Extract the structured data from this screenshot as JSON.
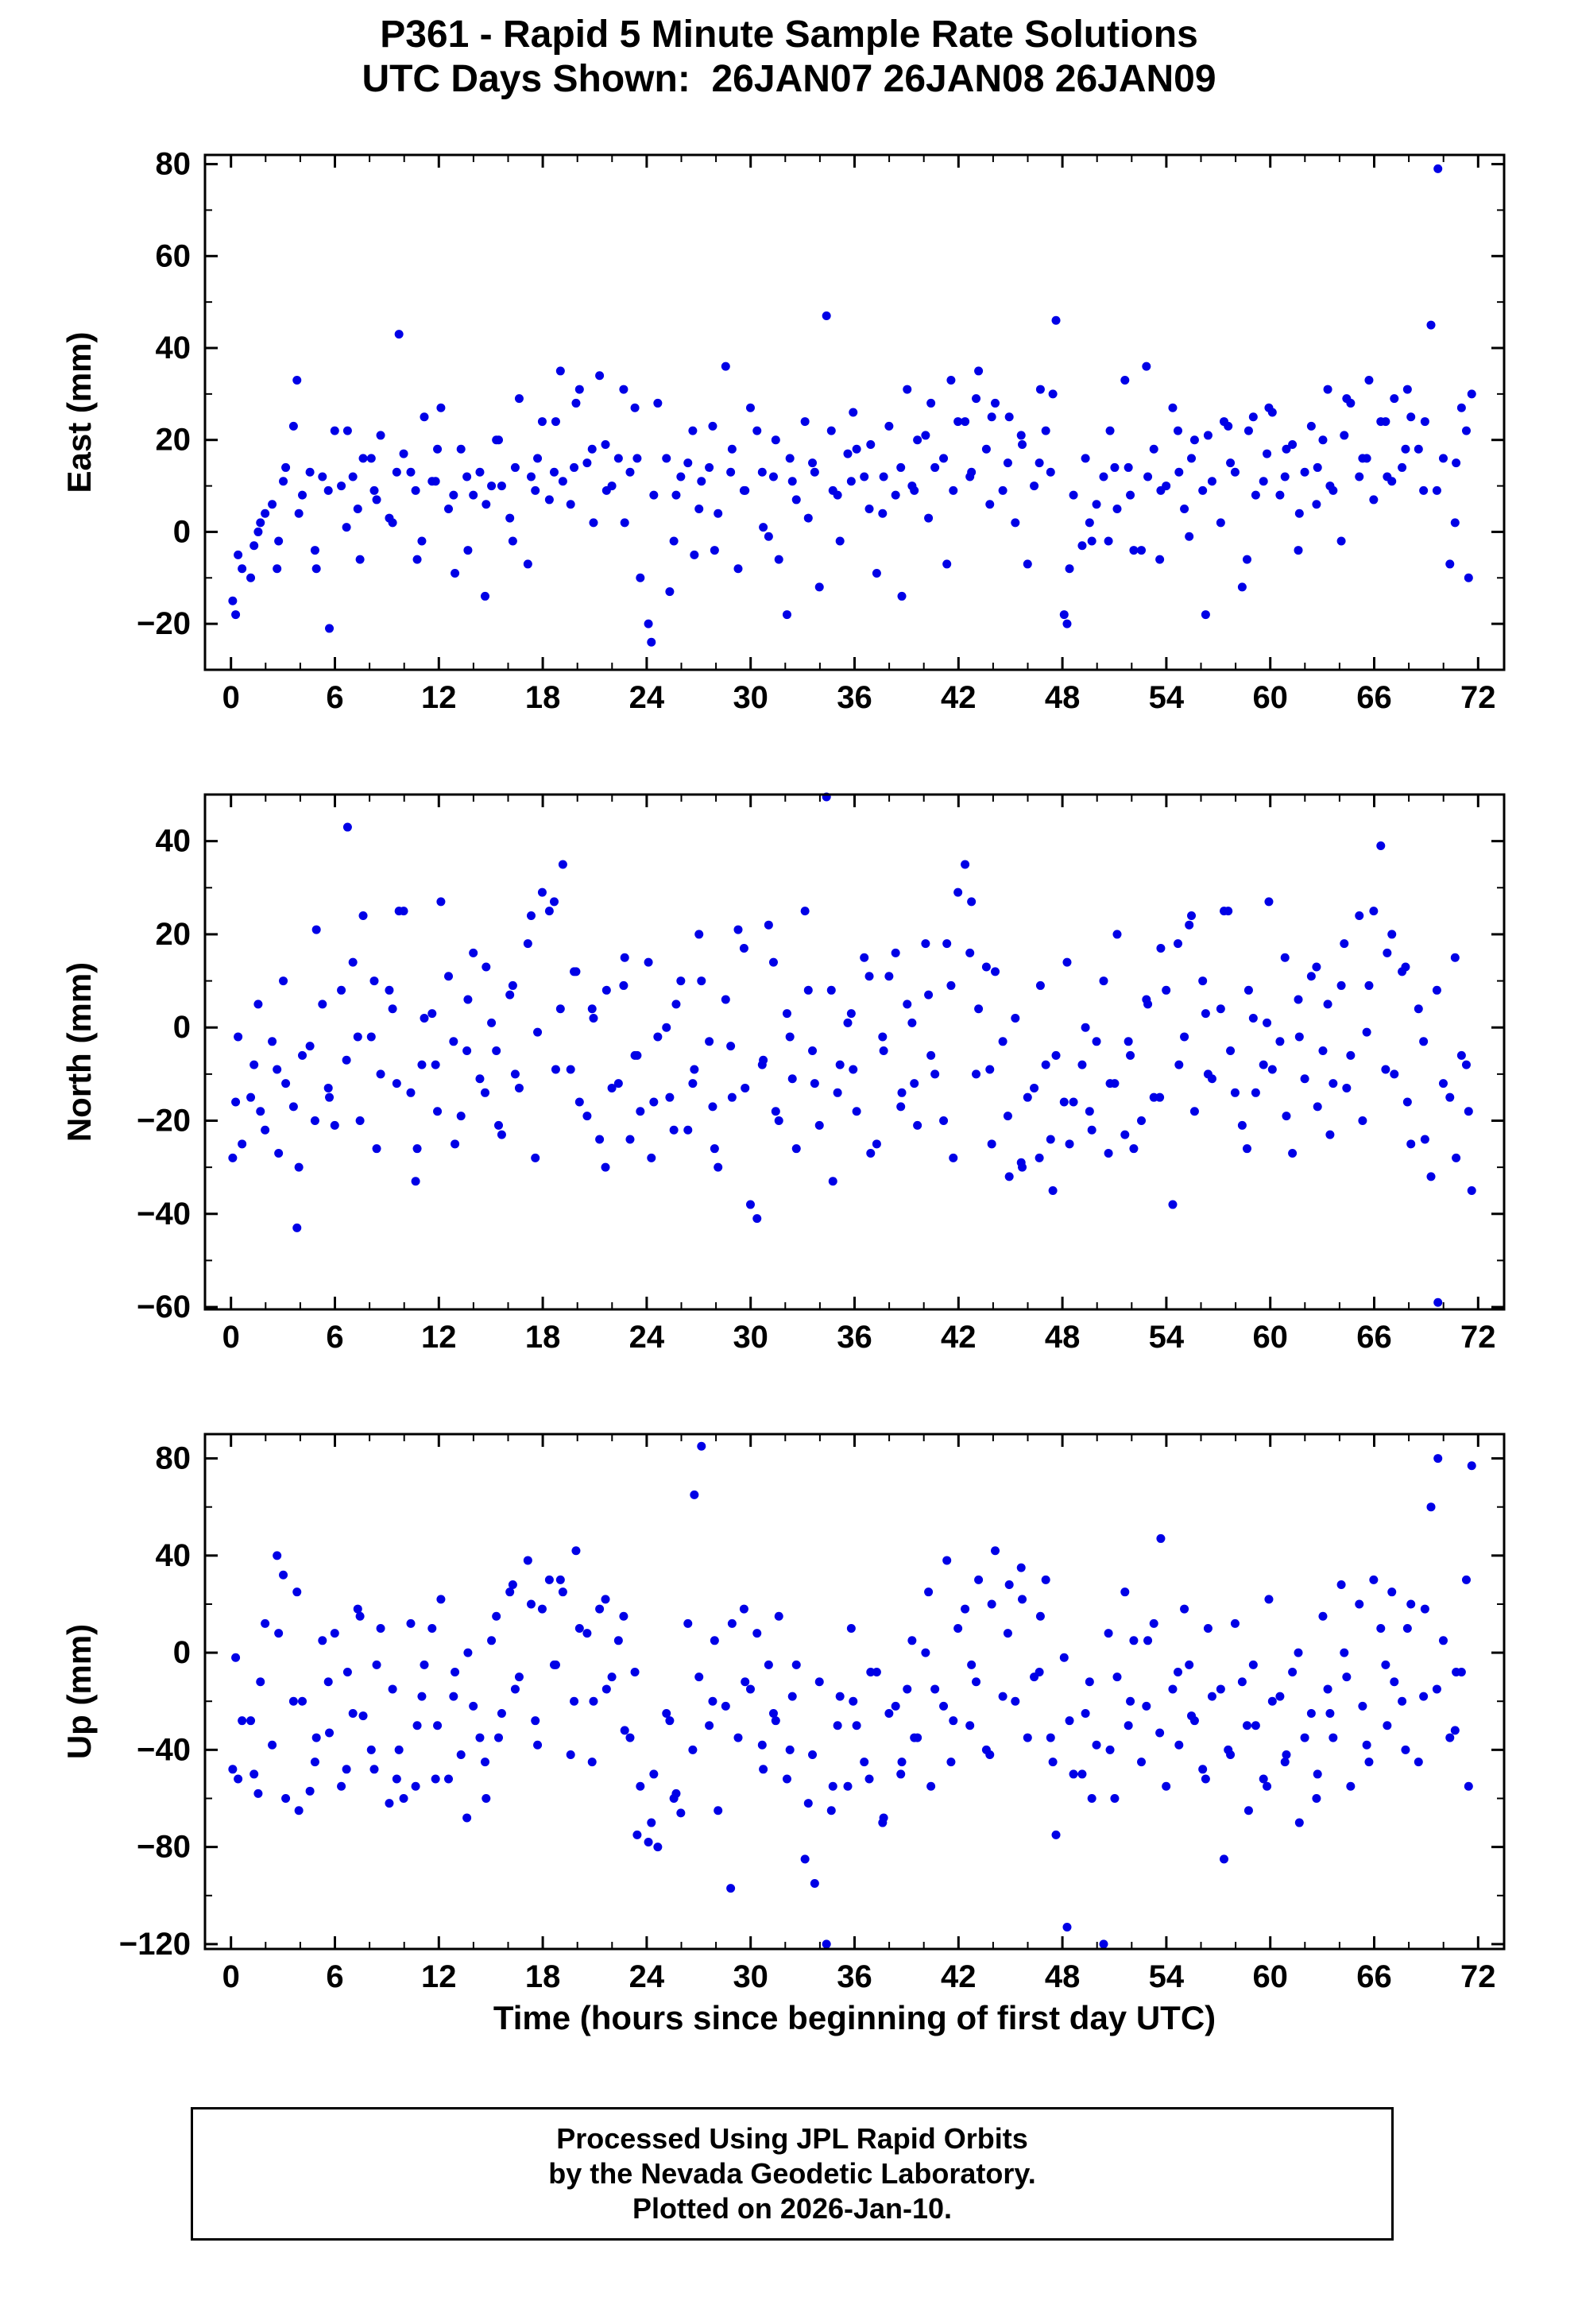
{
  "footer": {
    "line1": "Processed Using JPL Rapid Orbits",
    "line2": "by the Nevada Geodetic Laboratory.",
    "line3": "Plotted on 2026-Jan-10."
  },
  "chart_data": {
    "type": "scatter",
    "title": "P361 - Rapid 5 Minute Sample Rate Solutions",
    "subtitle": "UTC Days Shown:  26JAN07 26JAN08 26JAN09",
    "xlabel": "Time (hours since beginning of first day UTC)",
    "marker_color": "#0000e6",
    "grid": false,
    "legend": "none",
    "xlim": [
      -1.5,
      73.5
    ],
    "xticks": [
      0,
      6,
      12,
      18,
      24,
      30,
      36,
      42,
      48,
      54,
      60,
      66,
      72
    ],
    "x_minor_step": 2,
    "x_start": 0.25,
    "x_step": 0.5,
    "x2_offset": -0.21,
    "x_jitter": [
      0.02,
      -0.11,
      0.08,
      -0.05,
      0.13,
      0.0,
      -0.09,
      0.06,
      -0.13,
      0.1,
      0.03,
      -0.07,
      0.12,
      -0.02,
      0.07,
      -0.12
    ],
    "panels": [
      {
        "name": "east",
        "ylabel": "East (mm)",
        "ylim": [
          -30,
          82
        ],
        "yticks": [
          -20,
          0,
          20,
          40,
          60,
          80
        ],
        "y_minor_step": 10,
        "y": [
          -18,
          -8,
          -3,
          2,
          6,
          -2,
          14,
          33,
          8,
          -4,
          12,
          -21,
          10,
          22,
          5,
          16,
          9,
          21,
          2,
          43,
          13,
          -6,
          25,
          11,
          27,
          8,
          18,
          -4,
          13,
          6,
          20,
          10,
          -2,
          29,
          12,
          16,
          7,
          24,
          11,
          14,
          31,
          18,
          34,
          9,
          16,
          2,
          27,
          -10,
          -24,
          28,
          -13,
          8,
          15,
          -5,
          11,
          23,
          4,
          13,
          -8,
          9,
          22,
          1,
          12,
          -6,
          16,
          7,
          3,
          13,
          47,
          9,
          -2,
          11,
          18,
          5,
          -9,
          12,
          8,
          -14,
          10,
          20,
          3,
          14,
          -7,
          9,
          24,
          13,
          35,
          6,
          28,
          15,
          2,
          19,
          10,
          31,
          13,
          46,
          -20,
          8,
          16,
          -2,
          12,
          22,
          5,
          14,
          -4,
          36,
          18,
          9,
          27,
          13,
          -1,
          20,
          -18,
          11,
          24,
          15,
          -12,
          22,
          8,
          17,
          26,
          12,
          19,
          4,
          23,
          14,
          31,
          9,
          21,
          28,
          16,
          33,
          24,
          12,
          29,
          18,
          25,
          9,
          45,
          79,
          -7,
          15,
          22,
          30
        ],
        "y2": [
          -15,
          -5,
          -10,
          0,
          4,
          -8,
          11,
          23,
          4,
          13,
          -8,
          9,
          22,
          1,
          12,
          -6,
          16,
          7,
          3,
          13,
          17,
          9,
          -2,
          11,
          18,
          5,
          -9,
          12,
          8,
          -14,
          10,
          20,
          3,
          14,
          -7,
          9,
          24,
          13,
          35,
          6,
          28,
          15,
          2,
          19,
          10,
          31,
          13,
          16,
          -20,
          8,
          16,
          -2,
          12,
          22,
          5,
          14,
          -4,
          36,
          18,
          9,
          27,
          13,
          -1,
          20,
          -18,
          11,
          24,
          15,
          -12,
          22,
          8,
          17,
          26,
          12,
          19,
          4,
          23,
          14,
          31,
          9,
          21,
          28,
          16,
          33,
          24,
          12,
          29,
          18,
          25,
          9,
          25,
          21,
          -7,
          15,
          22,
          30,
          -18,
          -8,
          -3,
          2,
          6,
          -2,
          14,
          33,
          8,
          -4,
          12,
          -6,
          10,
          22,
          5,
          16,
          9,
          21,
          2,
          23,
          13,
          -6,
          25,
          11,
          27,
          8,
          18,
          -4,
          13,
          6,
          20,
          10,
          -2,
          29,
          12,
          16,
          7,
          24,
          11,
          14,
          31,
          18,
          24,
          9,
          16,
          2,
          27,
          -10
        ]
      },
      {
        "name": "north",
        "ylabel": "North (mm)",
        "ylim": [
          -60.5,
          50
        ],
        "yticks": [
          -60,
          -40,
          -20,
          0,
          20,
          40
        ],
        "y_minor_step": 10,
        "y": [
          -16,
          -25,
          -8,
          -18,
          -3,
          -27,
          -12,
          -43,
          -6,
          -20,
          5,
          -15,
          8,
          43,
          -2,
          24,
          10,
          -10,
          4,
          25,
          -14,
          -26,
          2,
          -8,
          27,
          -3,
          -19,
          6,
          -11,
          13,
          -5,
          -23,
          9,
          -13,
          24,
          -1,
          25,
          -9,
          35,
          12,
          -16,
          4,
          -24,
          8,
          -12,
          15,
          -6,
          -18,
          -28,
          -2,
          -15,
          5,
          -22,
          -9,
          10,
          -17,
          -30,
          -4,
          21,
          -13,
          -41,
          -7,
          14,
          -20,
          -2,
          -26,
          8,
          -12,
          55,
          -33,
          -8,
          3,
          -18,
          11,
          -25,
          -5,
          16,
          -14,
          1,
          -21,
          7,
          -10,
          18,
          -28,
          35,
          27,
          4,
          -9,
          12,
          -19,
          2,
          -30,
          -13,
          9,
          -24,
          -6,
          14,
          -16,
          0,
          -22,
          10,
          -12,
          20,
          -3,
          -26,
          6,
          -15,
          17,
          -38,
          -8,
          22,
          -18,
          3,
          -11,
          25,
          -5,
          -21,
          8,
          -14,
          1,
          -9,
          15,
          -27,
          -2,
          11,
          -17,
          5,
          -12,
          18,
          -6,
          -20,
          9,
          39,
          16,
          -10,
          13,
          -25,
          -3,
          -32,
          -59,
          -15,
          -28,
          -8,
          -35
        ],
        "y2": [
          -28,
          -2,
          -15,
          5,
          -22,
          -9,
          10,
          -17,
          -30,
          -4,
          21,
          -13,
          -21,
          -7,
          14,
          -20,
          -2,
          -26,
          8,
          -12,
          25,
          -33,
          -8,
          3,
          -18,
          11,
          -25,
          -5,
          16,
          -14,
          1,
          -21,
          7,
          -10,
          18,
          -28,
          29,
          27,
          4,
          -9,
          12,
          -19,
          2,
          -30,
          -13,
          9,
          -24,
          -6,
          14,
          -16,
          0,
          -22,
          10,
          -12,
          20,
          -3,
          -26,
          6,
          -15,
          17,
          -38,
          -8,
          22,
          -18,
          3,
          -11,
          25,
          -5,
          -21,
          8,
          -14,
          1,
          -9,
          15,
          -27,
          -2,
          11,
          -17,
          5,
          -12,
          18,
          -6,
          -20,
          9,
          29,
          16,
          -10,
          13,
          -25,
          -3,
          -32,
          -29,
          -15,
          -28,
          -8,
          -35,
          -16,
          -25,
          -8,
          -18,
          -3,
          -27,
          -12,
          -23,
          -6,
          -20,
          5,
          -15,
          8,
          18,
          -2,
          24,
          10,
          -10,
          4,
          25,
          -14,
          -26,
          2,
          -8,
          27,
          -3,
          -19,
          6,
          -11,
          13,
          -5,
          -23,
          9,
          -13,
          24,
          -1,
          25,
          -9,
          20,
          12,
          -16,
          4,
          -24,
          8,
          -12,
          15,
          -6,
          -18
        ]
      },
      {
        "name": "up",
        "ylabel": "Up (mm)",
        "ylim": [
          -122,
          90
        ],
        "yticks": [
          -120,
          -80,
          -40,
          0,
          40,
          80
        ],
        "y_minor_step": 20,
        "y": [
          -2,
          -28,
          -50,
          -12,
          -38,
          8,
          -60,
          25,
          -20,
          -45,
          5,
          -33,
          -55,
          -8,
          18,
          -26,
          -48,
          10,
          -15,
          -40,
          12,
          -30,
          -5,
          -52,
          22,
          -18,
          -42,
          0,
          -35,
          -60,
          15,
          -25,
          28,
          -10,
          20,
          -38,
          30,
          -5,
          25,
          -20,
          10,
          -45,
          18,
          -15,
          5,
          -32,
          -8,
          -55,
          -70,
          -80,
          -28,
          -58,
          12,
          65,
          85,
          -20,
          -65,
          -97,
          -35,
          -12,
          8,
          -48,
          -25,
          15,
          -40,
          -5,
          -62,
          -95,
          -120,
          -55,
          -18,
          10,
          -30,
          -52,
          -8,
          -68,
          -22,
          -45,
          5,
          -35,
          25,
          -15,
          38,
          -28,
          18,
          -5,
          30,
          -42,
          42,
          8,
          -20,
          22,
          -10,
          15,
          -35,
          -75,
          -113,
          -50,
          -25,
          -60,
          -120,
          -40,
          -10,
          -30,
          5,
          -22,
          12,
          47,
          -15,
          -38,
          -5,
          -28,
          -52,
          -18,
          -85,
          -42,
          -12,
          -65,
          -30,
          -55,
          -20,
          -45,
          -8,
          -70,
          -25,
          -50,
          -15,
          -35,
          0,
          -55,
          -22,
          -45,
          10,
          -30,
          -12,
          -40,
          20,
          -18,
          60,
          80,
          -35,
          -8,
          30,
          77
        ],
        "y2": [
          -48,
          -52,
          -28,
          -58,
          12,
          40,
          32,
          -20,
          -65,
          -57,
          -35,
          -12,
          8,
          -48,
          -25,
          15,
          -40,
          -5,
          -62,
          -52,
          -60,
          -55,
          -18,
          10,
          -30,
          -52,
          -8,
          -68,
          -22,
          -45,
          5,
          -35,
          25,
          -15,
          38,
          -28,
          18,
          -5,
          30,
          -42,
          42,
          8,
          -20,
          22,
          -10,
          15,
          -35,
          -75,
          -78,
          -50,
          -25,
          -60,
          -66,
          -40,
          -10,
          -30,
          5,
          -22,
          12,
          18,
          -15,
          -38,
          -5,
          -28,
          -52,
          -18,
          -85,
          -42,
          -12,
          -65,
          -30,
          -55,
          -20,
          -45,
          -8,
          -70,
          -25,
          -50,
          -15,
          -35,
          0,
          -55,
          -22,
          -45,
          10,
          -30,
          -12,
          -40,
          20,
          -18,
          28,
          35,
          -35,
          -8,
          30,
          -45,
          -2,
          -28,
          -50,
          -12,
          -38,
          8,
          -60,
          25,
          -20,
          -45,
          5,
          -33,
          -55,
          -8,
          18,
          -26,
          -48,
          10,
          -15,
          -40,
          12,
          -30,
          -5,
          -52,
          22,
          -18,
          -42,
          0,
          -35,
          -60,
          15,
          -25,
          28,
          -10,
          20,
          -38,
          30,
          -5,
          25,
          -20,
          10,
          -45,
          18,
          -15,
          5,
          -32,
          -8,
          -55
        ]
      }
    ]
  }
}
